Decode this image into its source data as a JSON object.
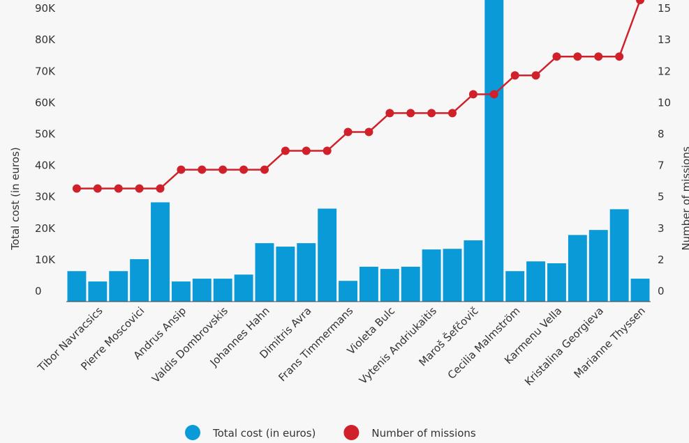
{
  "chart_data": {
    "type": "bar-line",
    "y_label": "Total cost (in euros)",
    "y2_label": "Number of missions",
    "categories": [
      null,
      "Tibor Navracsics",
      null,
      "Pierre Moscovici",
      null,
      "Andrus Ansip",
      null,
      "Valdis Dombrovskis",
      null,
      "Johannes Hahn",
      null,
      "Dimitris Avra",
      null,
      "Frans Timmermans",
      null,
      "Violeta Bulc",
      null,
      "Vytenis Andriukaitis",
      null,
      "Maroš Šefčovič",
      null,
      "Cecilia Malmström",
      null,
      "Karmenu Vella",
      null,
      "Kristalina Georgieva",
      null,
      "Marianne Thyssen"
    ],
    "series": [
      {
        "name": "Total cost (in euros)",
        "type": "bar",
        "color": "#0a9ad8",
        "values": [
          9700,
          6400,
          9700,
          13500,
          31600,
          6400,
          7300,
          7300,
          8600,
          18600,
          17500,
          18600,
          29600,
          6600,
          11100,
          10400,
          11100,
          16600,
          16800,
          19500,
          96000,
          9700,
          12800,
          12200,
          21200,
          22800,
          29400,
          7300
        ]
      },
      {
        "name": "Number of missions",
        "type": "line",
        "axis": "y2",
        "color": "#d0202a",
        "values": [
          6,
          6,
          6,
          6,
          6,
          7,
          7,
          7,
          7,
          7,
          8,
          8,
          8,
          9,
          9,
          10,
          10,
          10,
          10,
          11,
          11,
          12,
          12,
          13,
          13,
          13,
          13,
          16
        ]
      }
    ],
    "ylim": [
      0,
      96000
    ],
    "yticks": [
      0,
      {
        "value": 10000,
        "label": "10K"
      },
      {
        "value": 20000,
        "label": "20K"
      },
      {
        "value": 30000,
        "label": "30K"
      },
      {
        "value": 40000,
        "label": "40K"
      },
      {
        "value": 50000,
        "label": "50K"
      },
      {
        "value": 60000,
        "label": "60K"
      },
      {
        "value": 70000,
        "label": "70K"
      },
      {
        "value": 80000,
        "label": "80K"
      },
      {
        "value": 90000,
        "label": "90K"
      }
    ],
    "y2lim": [
      0,
      16
    ],
    "y2ticks": [
      0,
      {
        "value": 1.667,
        "label": "2"
      },
      {
        "value": 3.333,
        "label": "3"
      },
      5,
      {
        "value": 6.667,
        "label": "7"
      },
      {
        "value": 8.333,
        "label": "8"
      },
      10,
      {
        "value": 11.667,
        "label": "12"
      },
      {
        "value": 13.333,
        "label": "13"
      },
      15
    ],
    "legend": "bottom"
  }
}
